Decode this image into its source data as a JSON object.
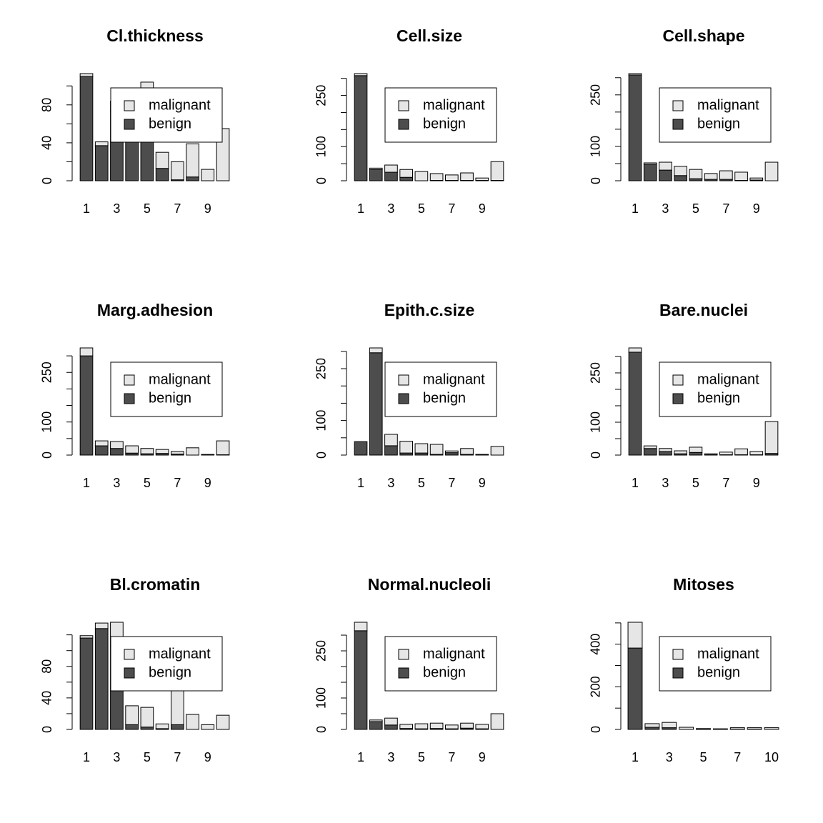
{
  "chart_data": [
    {
      "type": "bar",
      "stacked": true,
      "title": "Cl.thickness",
      "categories": [
        1,
        null,
        3,
        null,
        5,
        null,
        7,
        null,
        9,
        null
      ],
      "series": [
        {
          "name": "benign",
          "color": "#4d4d4d",
          "values": [
            110,
            37,
            74,
            54,
            68,
            13,
            1,
            4,
            0,
            0
          ]
        },
        {
          "name": "malignant",
          "color": "#e6e6e6",
          "values": [
            3,
            4,
            10,
            10,
            36,
            17,
            19,
            35,
            12,
            55
          ]
        }
      ],
      "ylim": [
        0,
        113
      ],
      "yticks": [
        0,
        40,
        80
      ],
      "yminor_ticks": [
        20,
        60,
        100
      ],
      "legend": "topright"
    },
    {
      "type": "bar",
      "stacked": true,
      "title": "Cell.size",
      "categories": [
        1,
        null,
        3,
        null,
        5,
        null,
        7,
        null,
        9,
        null
      ],
      "series": [
        {
          "name": "benign",
          "color": "#4d4d4d",
          "values": [
            308,
            33,
            25,
            10,
            0,
            1,
            1,
            1,
            1,
            1
          ]
        },
        {
          "name": "malignant",
          "color": "#e6e6e6",
          "values": [
            6,
            4,
            21,
            23,
            27,
            20,
            16,
            22,
            7,
            55
          ]
        }
      ],
      "ylim": [
        0,
        314
      ],
      "yticks": [
        0,
        100,
        250
      ],
      "yminor_ticks": [
        50,
        150,
        200,
        300
      ],
      "legend": "topright"
    },
    {
      "type": "bar",
      "stacked": true,
      "title": "Cell.shape",
      "categories": [
        1,
        null,
        3,
        null,
        5,
        null,
        7,
        null,
        9,
        null
      ],
      "series": [
        {
          "name": "benign",
          "color": "#4d4d4d",
          "values": [
            308,
            48,
            31,
            15,
            6,
            4,
            4,
            1,
            2,
            0
          ]
        },
        {
          "name": "malignant",
          "color": "#e6e6e6",
          "values": [
            4,
            4,
            23,
            27,
            27,
            17,
            25,
            24,
            6,
            54
          ]
        }
      ],
      "ylim": [
        0,
        312
      ],
      "yticks": [
        0,
        100,
        250
      ],
      "yminor_ticks": [
        50,
        150,
        200,
        300
      ],
      "legend": "topright"
    },
    {
      "type": "bar",
      "stacked": true,
      "title": "Marg.adhesion",
      "categories": [
        1,
        null,
        3,
        null,
        5,
        null,
        7,
        null,
        9,
        null
      ],
      "series": [
        {
          "name": "benign",
          "color": "#4d4d4d",
          "values": [
            300,
            28,
            20,
            6,
            4,
            5,
            3,
            0,
            1,
            1
          ]
        },
        {
          "name": "malignant",
          "color": "#e6e6e6",
          "values": [
            24,
            15,
            21,
            22,
            16,
            12,
            8,
            22,
            1,
            42
          ]
        }
      ],
      "ylim": [
        0,
        324
      ],
      "yticks": [
        0,
        100,
        250
      ],
      "yminor_ticks": [
        50,
        150,
        200,
        300
      ],
      "legend": "topright"
    },
    {
      "type": "bar",
      "stacked": true,
      "title": "Epith.c.size",
      "categories": [
        1,
        null,
        3,
        null,
        5,
        null,
        7,
        null,
        9,
        null
      ],
      "series": [
        {
          "name": "benign",
          "color": "#4d4d4d",
          "values": [
            39,
            296,
            27,
            6,
            6,
            2,
            7,
            2,
            1,
            0
          ]
        },
        {
          "name": "malignant",
          "color": "#e6e6e6",
          "values": [
            0,
            14,
            33,
            34,
            27,
            29,
            5,
            17,
            1,
            25
          ]
        }
      ],
      "ylim": [
        0,
        310
      ],
      "yticks": [
        0,
        100,
        250
      ],
      "yminor_ticks": [
        50,
        150,
        200,
        300
      ],
      "legend": "topright"
    },
    {
      "type": "bar",
      "stacked": true,
      "title": "Bare.nuclei",
      "categories": [
        1,
        null,
        3,
        null,
        5,
        null,
        7,
        null,
        9,
        null
      ],
      "series": [
        {
          "name": "benign",
          "color": "#4d4d4d",
          "values": [
            313,
            20,
            11,
            4,
            8,
            1,
            1,
            1,
            1,
            5
          ]
        },
        {
          "name": "malignant",
          "color": "#e6e6e6",
          "values": [
            13,
            8,
            9,
            9,
            16,
            3,
            8,
            18,
            10,
            97
          ]
        }
      ],
      "ylim": [
        0,
        326
      ],
      "yticks": [
        0,
        100,
        250
      ],
      "yminor_ticks": [
        50,
        150,
        200,
        300
      ],
      "legend": "topright"
    },
    {
      "type": "bar",
      "stacked": true,
      "title": "Bl.cromatin",
      "categories": [
        1,
        null,
        3,
        null,
        5,
        null,
        7,
        null,
        9,
        null
      ],
      "series": [
        {
          "name": "benign",
          "color": "#4d4d4d",
          "values": [
            116,
            128,
            106,
            6,
            3,
            1,
            6,
            0,
            0,
            0
          ]
        },
        {
          "name": "malignant",
          "color": "#e6e6e6",
          "values": [
            3,
            7,
            30,
            24,
            25,
            6,
            52,
            19,
            6,
            18
          ]
        }
      ],
      "ylim": [
        0,
        136
      ],
      "yticks": [
        0,
        40,
        80
      ],
      "yminor_ticks": [
        20,
        60,
        100,
        120
      ],
      "legend": "topright"
    },
    {
      "type": "bar",
      "stacked": true,
      "title": "Normal.nucleoli",
      "categories": [
        1,
        null,
        3,
        null,
        5,
        null,
        7,
        null,
        9,
        null
      ],
      "series": [
        {
          "name": "benign",
          "color": "#4d4d4d",
          "values": [
            314,
            25,
            14,
            3,
            2,
            3,
            2,
            4,
            2,
            0
          ]
        },
        {
          "name": "malignant",
          "color": "#e6e6e6",
          "values": [
            27,
            5,
            22,
            13,
            16,
            17,
            12,
            16,
            14,
            50
          ]
        }
      ],
      "ylim": [
        0,
        341
      ],
      "yticks": [
        0,
        100,
        250
      ],
      "yminor_ticks": [
        50,
        150,
        200,
        300
      ],
      "legend": "topright"
    },
    {
      "type": "bar",
      "stacked": true,
      "title": "Mitoses",
      "categories": [
        1,
        null,
        3,
        null,
        5,
        null,
        7,
        null,
        10
      ],
      "series": [
        {
          "name": "benign",
          "color": "#4d4d4d",
          "values": [
            382,
            10,
            8,
            0,
            1,
            0,
            1,
            1,
            0
          ]
        },
        {
          "name": "malignant",
          "color": "#e6e6e6",
          "values": [
            121,
            17,
            25,
            10,
            3,
            3,
            7,
            7,
            8
          ]
        }
      ],
      "ylim": [
        0,
        503
      ],
      "yticks": [
        0,
        200,
        400
      ],
      "yminor_ticks": [
        100,
        300,
        500
      ],
      "legend": "topright"
    }
  ]
}
